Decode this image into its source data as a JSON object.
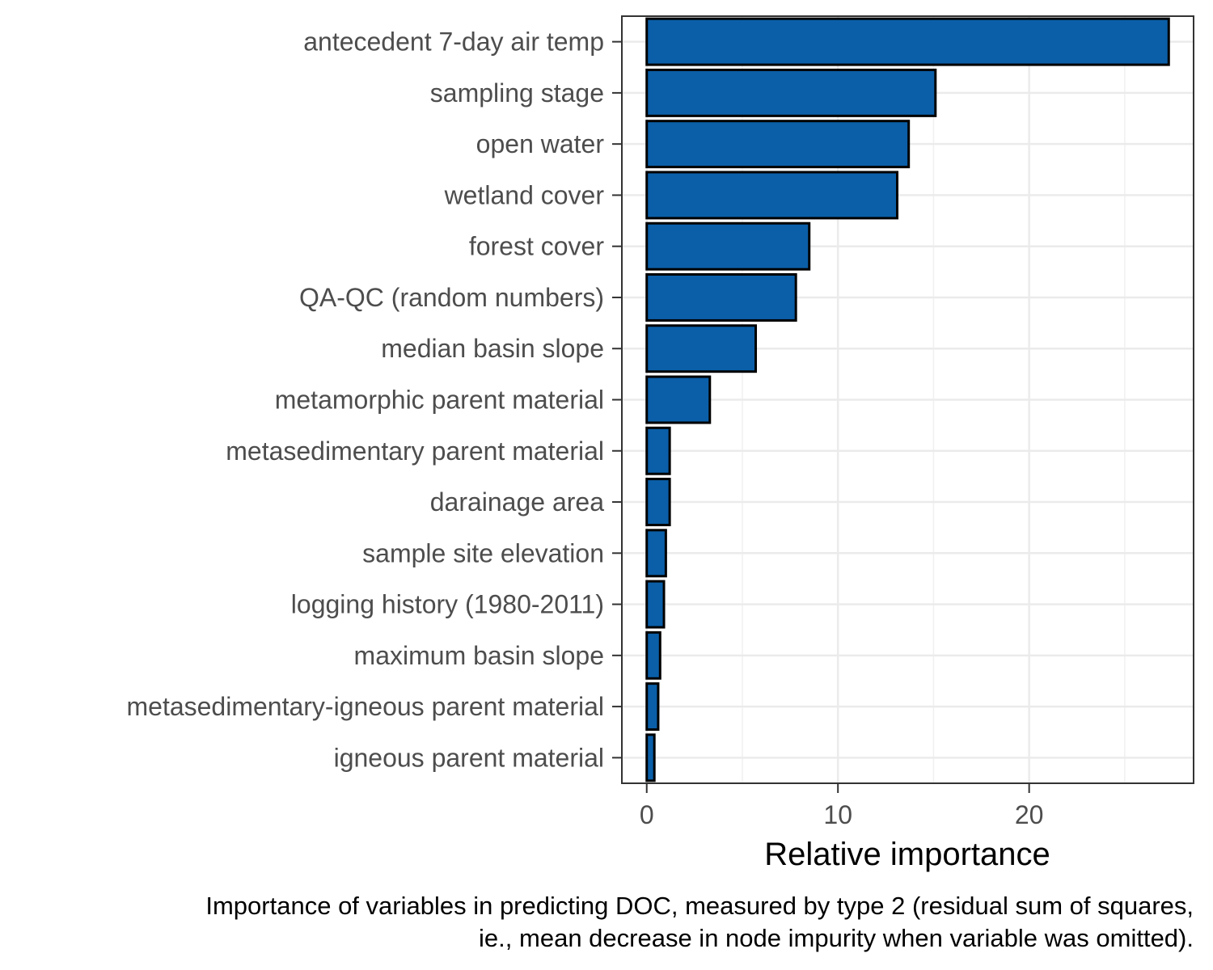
{
  "chart_data": {
    "type": "bar",
    "orientation": "horizontal",
    "categories": [
      "antecedent 7-day air temp",
      "sampling stage",
      "open water",
      "wetland cover",
      "forest cover",
      "QA-QC (random numbers)",
      "median basin slope",
      "metamorphic parent material",
      "metasedimentary parent material",
      "darainage area",
      "sample site elevation",
      "logging history (1980-2011)",
      "maximum basin slope",
      "metasedimentary-igneous parent material",
      "igneous parent material"
    ],
    "values": [
      27.3,
      15.1,
      13.7,
      13.1,
      8.5,
      7.8,
      5.7,
      3.3,
      1.2,
      1.2,
      1.0,
      0.9,
      0.7,
      0.6,
      0.4
    ],
    "xlabel": "Relative importance",
    "ylabel": "",
    "xlim": [
      -1.3,
      28.6
    ],
    "xticks": [
      0,
      10,
      20
    ],
    "xtick_labels": [
      "0",
      "10",
      "20"
    ],
    "grid": true,
    "bar_color": "#0b5fa8",
    "bar_edge_color": "#000000",
    "caption": [
      "Importance of variables in predicting DOC, measured by type 2 (residual sum of squares,",
      "ie., mean decrease in node impurity when variable was omitted)."
    ]
  }
}
